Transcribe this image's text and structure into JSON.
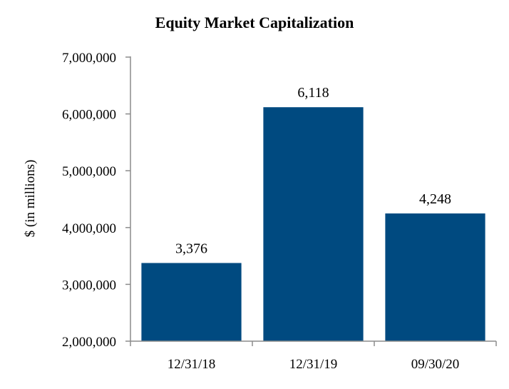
{
  "chart_data": {
    "type": "bar",
    "title": "Equity Market Capitalization",
    "xlabel": "",
    "ylabel": "$ (in millions)",
    "categories": [
      "12/31/18",
      "12/31/19",
      "09/30/20"
    ],
    "values": [
      3376000,
      6118000,
      4248000
    ],
    "data_labels": [
      "3,376",
      "6,118",
      "4,248"
    ],
    "ylim": [
      2000000,
      7000000
    ],
    "yticks": [
      2000000,
      3000000,
      4000000,
      5000000,
      6000000,
      7000000
    ],
    "ytick_labels": [
      "2,000,000",
      "3,000,000",
      "4,000,000",
      "5,000,000",
      "6,000,000",
      "7,000,000"
    ],
    "bar_color": "#004a80",
    "grid": false,
    "legend": "none"
  }
}
